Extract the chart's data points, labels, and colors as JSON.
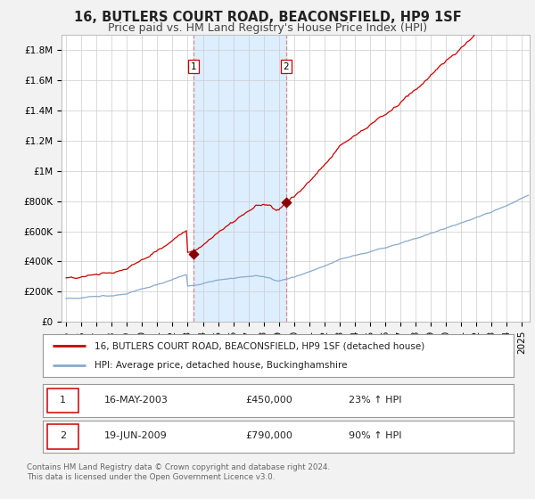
{
  "title": "16, BUTLERS COURT ROAD, BEACONSFIELD, HP9 1SF",
  "subtitle": "Price paid vs. HM Land Registry's House Price Index (HPI)",
  "ylim": [
    0,
    1900000
  ],
  "yticks": [
    0,
    200000,
    400000,
    600000,
    800000,
    1000000,
    1200000,
    1400000,
    1600000,
    1800000
  ],
  "ytick_labels": [
    "£0",
    "£200K",
    "£400K",
    "£600K",
    "£800K",
    "£1M",
    "£1.2M",
    "£1.4M",
    "£1.6M",
    "£1.8M"
  ],
  "xlim_start": 1994.7,
  "xlim_end": 2025.5,
  "background_color": "#f2f2f2",
  "plot_bg_color": "#ffffff",
  "grid_color": "#cccccc",
  "sale1_year": 2003.37,
  "sale1_price": 450000,
  "sale1_date": "16-MAY-2003",
  "sale1_hpi_pct": "23%",
  "sale2_year": 2009.46,
  "sale2_price": 790000,
  "sale2_date": "19-JUN-2009",
  "sale2_hpi_pct": "90%",
  "shaded_color": "#ddeeff",
  "red_line_color": "#cc0000",
  "blue_line_color": "#88aacc",
  "sale_dot_color": "#880000",
  "dashed_color": "#dd8888",
  "legend_line1": "16, BUTLERS COURT ROAD, BEACONSFIELD, HP9 1SF (detached house)",
  "legend_line2": "HPI: Average price, detached house, Buckinghamshire",
  "footer": "Contains HM Land Registry data © Crown copyright and database right 2024.\nThis data is licensed under the Open Government Licence v3.0.",
  "title_fontsize": 10.5,
  "subtitle_fontsize": 9,
  "tick_fontsize": 7.5,
  "legend_fontsize": 8
}
